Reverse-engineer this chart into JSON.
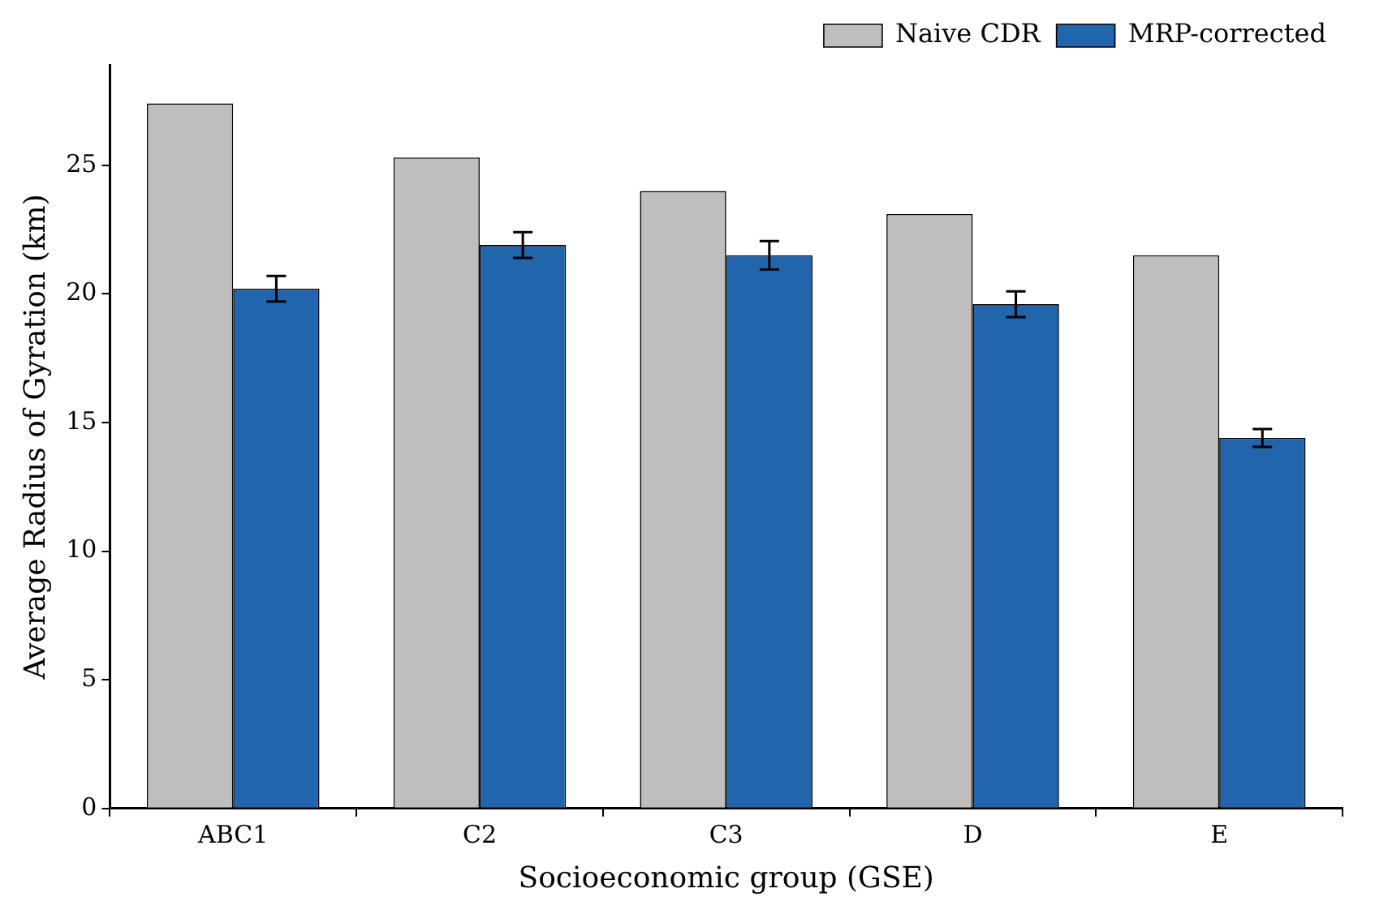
{
  "chart_data": {
    "type": "bar",
    "xlabel": "Socioeconomic group (GSE)",
    "ylabel": "Average Radius of Gyration (km)",
    "categories": [
      "ABC1",
      "C2",
      "C3",
      "D",
      "E"
    ],
    "series": [
      {
        "name": "Naive CDR",
        "color": "#bebebe",
        "values": [
          27.4,
          25.3,
          24.0,
          23.1,
          21.5
        ]
      },
      {
        "name": "MRP-corrected",
        "color": "#2166ac",
        "values": [
          20.2,
          21.9,
          21.5,
          19.6,
          14.4
        ],
        "errors": [
          0.5,
          0.5,
          0.55,
          0.5,
          0.35
        ]
      }
    ],
    "ylim": [
      0,
      28.9
    ],
    "yticks": [
      0,
      5,
      10,
      15,
      20,
      25
    ],
    "grid": false,
    "legend": "top right"
  }
}
